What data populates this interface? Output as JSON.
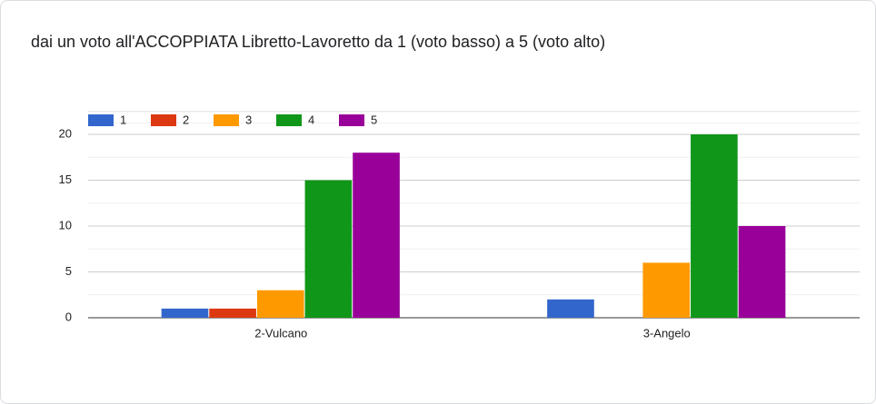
{
  "chart_data": {
    "type": "bar",
    "title": "dai un voto all'ACCOPPIATA Libretto-Lavoretto da 1 (voto basso) a 5 (voto alto)",
    "categories": [
      "2-Vulcano",
      "3-Angelo"
    ],
    "series": [
      {
        "name": "1",
        "color": "#3366cc",
        "values": [
          1,
          2
        ]
      },
      {
        "name": "2",
        "color": "#dc3912",
        "values": [
          1,
          0
        ]
      },
      {
        "name": "3",
        "color": "#ff9900",
        "values": [
          3,
          6
        ]
      },
      {
        "name": "4",
        "color": "#109618",
        "values": [
          15,
          20
        ]
      },
      {
        "name": "5",
        "color": "#990099",
        "values": [
          18,
          10
        ]
      }
    ],
    "ylim": [
      0,
      22.5
    ],
    "yticks": [
      0,
      5,
      10,
      15,
      20
    ],
    "grid": true,
    "legend": "top"
  }
}
